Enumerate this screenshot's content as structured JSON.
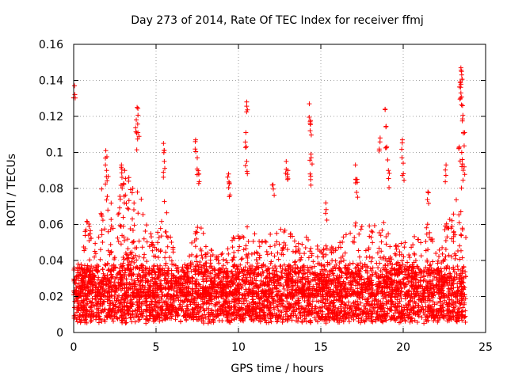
{
  "chart_data": {
    "type": "scatter",
    "title": "Day 273 of 2014, Rate Of TEC Index for receiver ffmj",
    "xlabel": "GPS time / hours",
    "ylabel": "ROTI / TECUs",
    "xlim": [
      0,
      25
    ],
    "ylim": [
      0,
      0.16
    ],
    "x_ticks": [
      "0",
      "5",
      "10",
      "15",
      "20",
      "25"
    ],
    "y_ticks": [
      "0",
      "0.02",
      "0.04",
      "0.06",
      "0.08",
      "0.1",
      "0.12",
      "0.14",
      "0.16"
    ],
    "grid": true,
    "marker": "+",
    "color": "#ff0000",
    "x_range_hours": [
      0,
      23.8
    ],
    "baseline_band": [
      0.005,
      0.035
    ],
    "envelope": [
      {
        "x": 0.0,
        "y": 0.03
      },
      {
        "x": 0.5,
        "y": 0.045
      },
      {
        "x": 0.8,
        "y": 0.065
      },
      {
        "x": 1.3,
        "y": 0.05
      },
      {
        "x": 1.9,
        "y": 0.101
      },
      {
        "x": 2.5,
        "y": 0.06
      },
      {
        "x": 3.0,
        "y": 0.092
      },
      {
        "x": 3.5,
        "y": 0.085
      },
      {
        "x": 4.0,
        "y": 0.08
      },
      {
        "x": 4.5,
        "y": 0.058
      },
      {
        "x": 5.0,
        "y": 0.05
      },
      {
        "x": 5.5,
        "y": 0.078
      },
      {
        "x": 6.0,
        "y": 0.052
      },
      {
        "x": 6.5,
        "y": 0.03
      },
      {
        "x": 7.0,
        "y": 0.045
      },
      {
        "x": 7.5,
        "y": 0.075
      },
      {
        "x": 8.0,
        "y": 0.05
      },
      {
        "x": 9.0,
        "y": 0.045
      },
      {
        "x": 9.5,
        "y": 0.05
      },
      {
        "x": 10.0,
        "y": 0.058
      },
      {
        "x": 10.5,
        "y": 0.06
      },
      {
        "x": 11.5,
        "y": 0.05
      },
      {
        "x": 12.0,
        "y": 0.058
      },
      {
        "x": 12.5,
        "y": 0.058
      },
      {
        "x": 13.0,
        "y": 0.065
      },
      {
        "x": 13.5,
        "y": 0.05
      },
      {
        "x": 14.0,
        "y": 0.055
      },
      {
        "x": 14.5,
        "y": 0.055
      },
      {
        "x": 15.0,
        "y": 0.045
      },
      {
        "x": 15.5,
        "y": 0.05
      },
      {
        "x": 16.0,
        "y": 0.05
      },
      {
        "x": 17.0,
        "y": 0.06
      },
      {
        "x": 17.5,
        "y": 0.065
      },
      {
        "x": 18.0,
        "y": 0.06
      },
      {
        "x": 18.5,
        "y": 0.06
      },
      {
        "x": 19.0,
        "y": 0.065
      },
      {
        "x": 19.5,
        "y": 0.05
      },
      {
        "x": 20.0,
        "y": 0.05
      },
      {
        "x": 20.5,
        "y": 0.055
      },
      {
        "x": 21.0,
        "y": 0.06
      },
      {
        "x": 21.5,
        "y": 0.065
      },
      {
        "x": 22.0,
        "y": 0.045
      },
      {
        "x": 22.5,
        "y": 0.06
      },
      {
        "x": 23.0,
        "y": 0.065
      },
      {
        "x": 23.5,
        "y": 0.085
      },
      {
        "x": 23.8,
        "y": 0.06
      }
    ],
    "spikes": [
      {
        "x": 0.05,
        "y": 0.137
      },
      {
        "x": 1.95,
        "y": 0.101
      },
      {
        "x": 2.0,
        "y": 0.09
      },
      {
        "x": 2.9,
        "y": 0.093
      },
      {
        "x": 3.1,
        "y": 0.09
      },
      {
        "x": 3.85,
        "y": 0.125
      },
      {
        "x": 3.8,
        "y": 0.118
      },
      {
        "x": 3.9,
        "y": 0.111
      },
      {
        "x": 5.45,
        "y": 0.105
      },
      {
        "x": 5.5,
        "y": 0.095
      },
      {
        "x": 7.4,
        "y": 0.107
      },
      {
        "x": 7.5,
        "y": 0.097
      },
      {
        "x": 7.6,
        "y": 0.088
      },
      {
        "x": 9.4,
        "y": 0.088
      },
      {
        "x": 9.45,
        "y": 0.083
      },
      {
        "x": 10.5,
        "y": 0.128
      },
      {
        "x": 10.45,
        "y": 0.111
      },
      {
        "x": 10.5,
        "y": 0.095
      },
      {
        "x": 12.1,
        "y": 0.082
      },
      {
        "x": 12.9,
        "y": 0.095
      },
      {
        "x": 13.0,
        "y": 0.09
      },
      {
        "x": 14.3,
        "y": 0.127
      },
      {
        "x": 14.35,
        "y": 0.116
      },
      {
        "x": 14.4,
        "y": 0.099
      },
      {
        "x": 14.35,
        "y": 0.088
      },
      {
        "x": 15.3,
        "y": 0.072
      },
      {
        "x": 17.1,
        "y": 0.093
      },
      {
        "x": 17.2,
        "y": 0.085
      },
      {
        "x": 18.6,
        "y": 0.108
      },
      {
        "x": 18.9,
        "y": 0.124
      },
      {
        "x": 19.0,
        "y": 0.103
      },
      {
        "x": 19.1,
        "y": 0.09
      },
      {
        "x": 19.95,
        "y": 0.107
      },
      {
        "x": 20.0,
        "y": 0.094
      },
      {
        "x": 21.5,
        "y": 0.078
      },
      {
        "x": 22.6,
        "y": 0.093
      },
      {
        "x": 23.5,
        "y": 0.147
      },
      {
        "x": 23.55,
        "y": 0.143
      },
      {
        "x": 23.45,
        "y": 0.139
      },
      {
        "x": 23.5,
        "y": 0.133
      },
      {
        "x": 23.6,
        "y": 0.126
      },
      {
        "x": 23.65,
        "y": 0.111
      },
      {
        "x": 23.4,
        "y": 0.103
      },
      {
        "x": 23.55,
        "y": 0.1
      },
      {
        "x": 23.7,
        "y": 0.092
      }
    ]
  }
}
